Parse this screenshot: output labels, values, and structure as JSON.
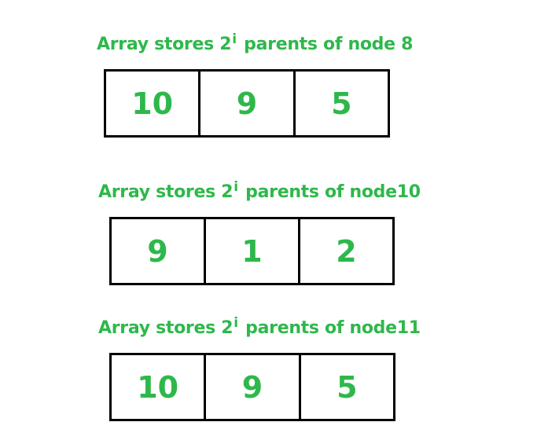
{
  "diagram": {
    "text_color": "#2eb84b",
    "border_color": "#000000",
    "blocks": [
      {
        "caption_prefix": "Array stores 2",
        "caption_exp": "i",
        "caption_suffix": "parents of node 8",
        "cells": [
          "10",
          "9",
          "5"
        ]
      },
      {
        "caption_prefix": "Array stores 2",
        "caption_exp": "i",
        "caption_suffix": "parents of node10",
        "cells": [
          "9",
          "1",
          "2"
        ]
      },
      {
        "caption_prefix": "Array stores 2",
        "caption_exp": "i",
        "caption_suffix": "parents of node11",
        "cells": [
          "10",
          "9",
          "5"
        ]
      }
    ]
  }
}
